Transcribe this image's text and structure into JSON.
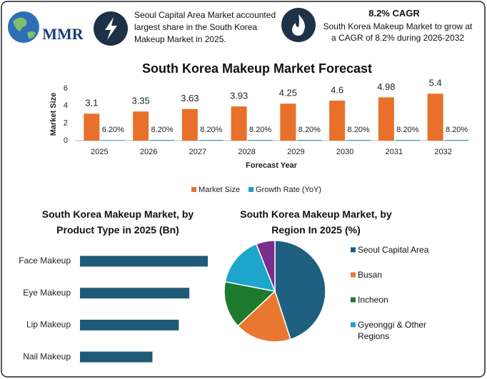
{
  "header": {
    "logo": "MMR",
    "share_note": "Seoul Capital Area Market accounted largest share in the South Korea Makeup Market in 2025.",
    "cagr_title": "8.2% CAGR",
    "cagr_note": "South Korea Makeup Market to grow at a CAGR of 8.2% during 2026-2032"
  },
  "chart_data": [
    {
      "type": "bar",
      "title": "South Korea Makeup Market Forecast",
      "x_label": "Forecast Year",
      "y_label": "Market Size",
      "categories": [
        "2025",
        "2026",
        "2027",
        "2028",
        "2029",
        "2030",
        "2031",
        "2032"
      ],
      "series": [
        {
          "name": "Market Size",
          "color": "#e8702a",
          "values": [
            3.1,
            3.35,
            3.63,
            3.93,
            4.25,
            4.6,
            4.98,
            5.4
          ]
        },
        {
          "name": "Growth Rate (YoY)",
          "color": "#1aa3c8",
          "values": [
            0.062,
            0.082,
            0.082,
            0.082,
            0.082,
            0.082,
            0.082,
            0.082
          ],
          "value_labels": [
            "6.20%",
            "8.20%",
            "8.20%",
            "8.20%",
            "8.20%",
            "8.20%",
            "8.20%",
            "8.20%"
          ]
        }
      ],
      "ylim": [
        0,
        6.3
      ],
      "yticks": [
        0,
        2,
        4,
        6
      ],
      "legend": "bottom"
    },
    {
      "type": "barh",
      "title": "South Korea Makeup Market, by Product Type in 2025 (Bn)",
      "categories": [
        "Face Makeup",
        "Eye Makeup",
        "Lip Makeup",
        "Nail Makeup"
      ],
      "values": [
        0.97,
        0.83,
        0.75,
        0.55
      ],
      "color": "#1f5b78"
    },
    {
      "type": "pie",
      "title": "South Korea Makeup Market, by Region In 2025 (%)",
      "categories": [
        "Seoul Capital Area",
        "Busan",
        "Incheon",
        "Gyeonggi & Other Regions",
        null
      ],
      "values": [
        45,
        18,
        15,
        16,
        6
      ],
      "colors": [
        "#1f5f7f",
        "#e9772f",
        "#1e7a2e",
        "#1ea5cc",
        "#7b2d8e"
      ],
      "legend": "right"
    }
  ]
}
